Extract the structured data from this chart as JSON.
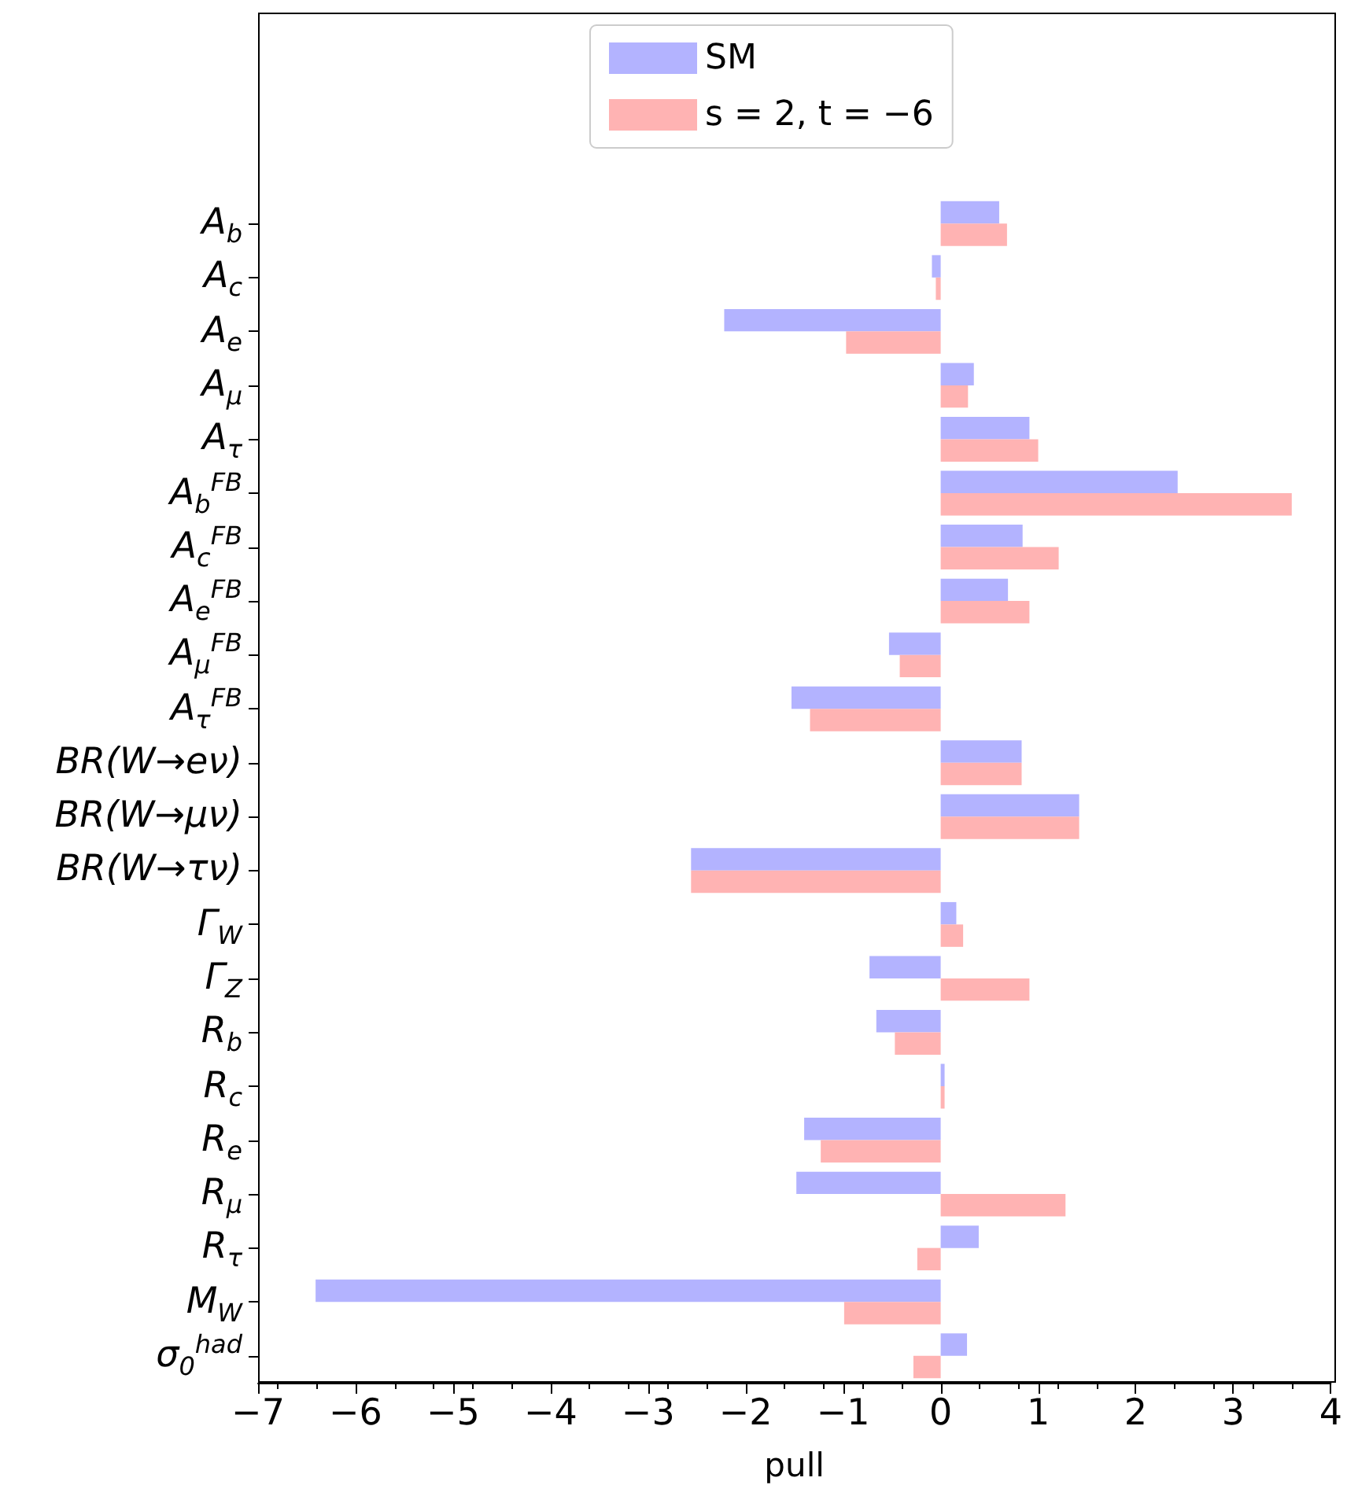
{
  "chart_data": {
    "type": "bar",
    "orientation": "horizontal",
    "xlabel": "pull",
    "categories": [
      "A$_{b}$",
      "A$_{c}$",
      "A$_{e}$",
      "A$_{μ}$",
      "A$_{τ}$",
      "A$_{b}$$^{FB}$",
      "A$_{c}$$^{FB}$",
      "A$_{e}$$^{FB}$",
      "A$_{μ}$$^{FB}$",
      "A$_{τ}$$^{FB}$",
      "BR(W→eν)",
      "BR(W→μν)",
      "BR(W→τν)",
      "Γ$_{W}$",
      "Γ$_{Z}$",
      "R$_{b}$",
      "R$_{c}$",
      "R$_{e}$",
      "R$_{μ}$",
      "R$_{τ}$",
      "M$_{W}$",
      "σ$_{0}$$^{had}$"
    ],
    "series": [
      {
        "name": "SM",
        "color": "#b3b3ff",
        "values": [
          0.6,
          -0.09,
          -2.22,
          0.34,
          0.91,
          2.43,
          0.84,
          0.69,
          -0.53,
          -1.53,
          0.83,
          1.42,
          -2.56,
          0.16,
          -0.73,
          -0.66,
          0.04,
          -1.4,
          -1.48,
          0.39,
          -6.41,
          0.27
        ]
      },
      {
        "name": "s = 2, t = −6",
        "color": "#ffb3b3",
        "values": [
          0.68,
          -0.05,
          -0.97,
          0.28,
          1.0,
          3.6,
          1.21,
          0.91,
          -0.42,
          -1.34,
          0.83,
          1.42,
          -2.56,
          0.23,
          0.91,
          -0.47,
          0.04,
          -1.23,
          1.28,
          -0.24,
          -0.99,
          -0.28
        ]
      }
    ],
    "xlim": [
      -7,
      4
    ],
    "xticks": [
      {
        "value": -7,
        "label": "−7"
      },
      {
        "value": -6,
        "label": "−6"
      },
      {
        "value": -5,
        "label": "−5"
      },
      {
        "value": -4,
        "label": "−4"
      },
      {
        "value": -3,
        "label": "−3"
      },
      {
        "value": -2,
        "label": "−2"
      },
      {
        "value": -1,
        "label": "−1"
      },
      0,
      1,
      2,
      3,
      4
    ],
    "legend": "top",
    "grid": false
  }
}
